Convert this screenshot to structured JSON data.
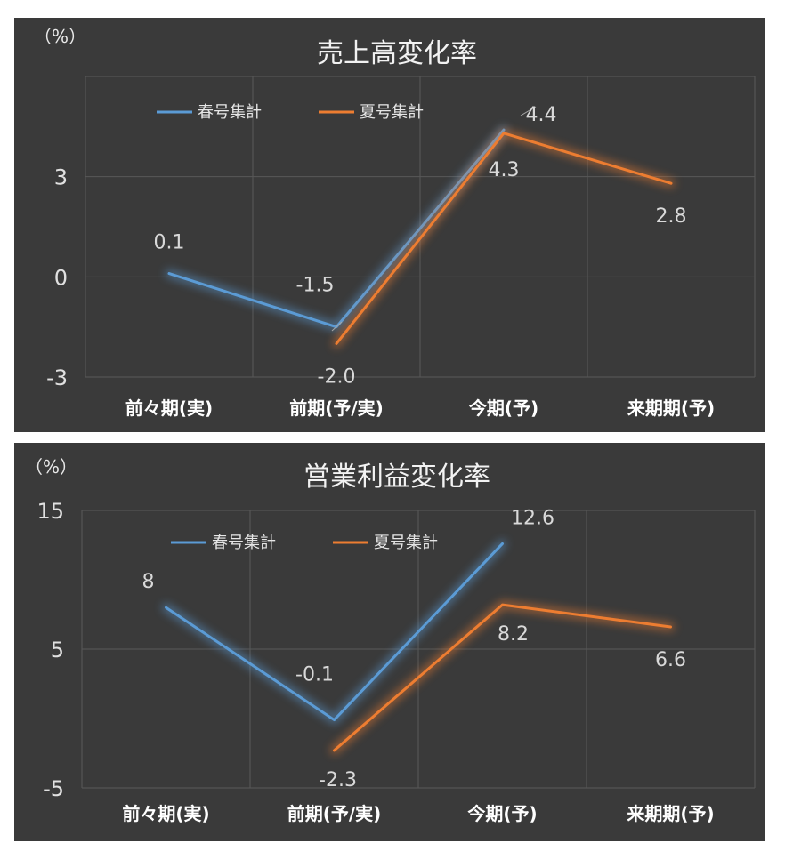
{
  "chart_data": [
    {
      "type": "line",
      "title": "売上高変化率",
      "unit": "（%）",
      "categories": [
        "前々期(実)",
        "前期(予/実)",
        "今期(予)",
        "来期期(予)"
      ],
      "yticks": [
        3,
        0,
        -3
      ],
      "ytick_labels": [
        "3",
        "0",
        "-3"
      ],
      "ylim": [
        -3,
        6
      ],
      "legend_position": "top-left",
      "series": [
        {
          "name": "春号集計",
          "color": "#5b9bd5",
          "values": [
            0.1,
            -1.5,
            4.4,
            null
          ],
          "labels": [
            "0.1",
            "-1.5",
            "4.4",
            ""
          ]
        },
        {
          "name": "夏号集計",
          "color": "#ed7d31",
          "values": [
            null,
            -2.0,
            4.3,
            2.8
          ],
          "labels": [
            "",
            "-2.0",
            "4.3",
            "2.8"
          ]
        }
      ]
    },
    {
      "type": "line",
      "title": "営業利益変化率",
      "unit": "（%）",
      "categories": [
        "前々期(実)",
        "前期(予/実)",
        "今期(予)",
        "来期期(予)"
      ],
      "yticks": [
        15,
        5,
        -5
      ],
      "ytick_labels": [
        "15",
        "5",
        "-5"
      ],
      "ylim": [
        -5,
        15
      ],
      "legend_position": "top-left",
      "series": [
        {
          "name": "春号集計",
          "color": "#5b9bd5",
          "values": [
            8,
            -0.1,
            12.6,
            null
          ],
          "labels": [
            "8",
            "-0.1",
            "12.6",
            ""
          ]
        },
        {
          "name": "夏号集計",
          "color": "#ed7d31",
          "values": [
            null,
            -2.3,
            8.2,
            6.6
          ],
          "labels": [
            "",
            "-2.3",
            "8.2",
            "6.6"
          ]
        }
      ]
    }
  ]
}
